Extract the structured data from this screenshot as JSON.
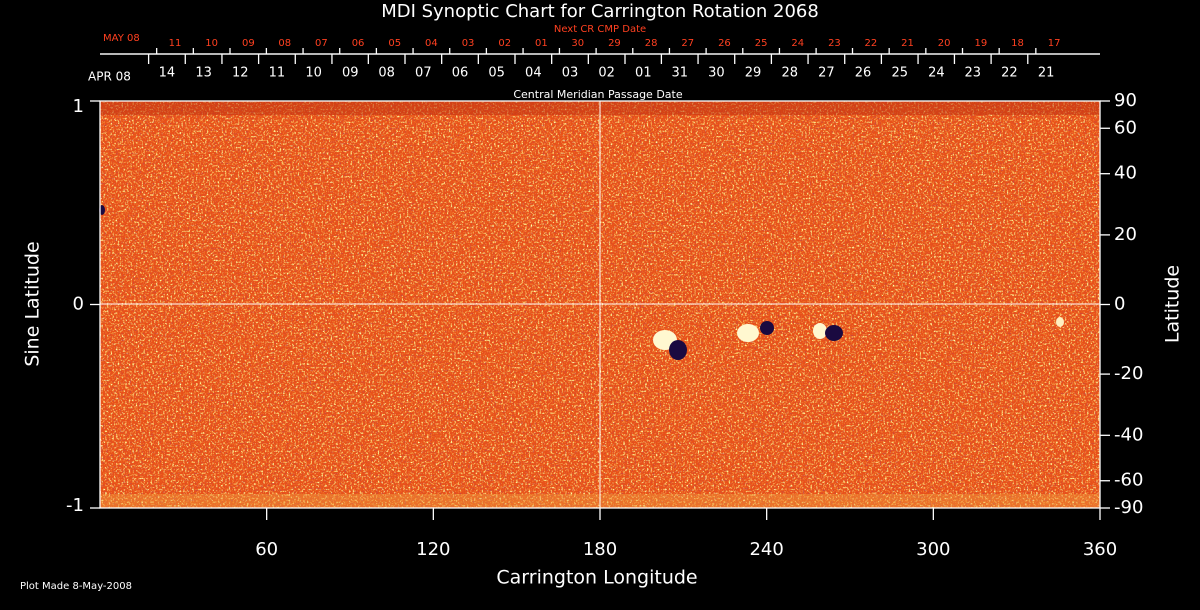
{
  "chart_data": {
    "type": "image",
    "title": "MDI Synoptic Chart for Carrington Rotation 2068",
    "xlabel": "Carrington Longitude",
    "ylabel": "Sine Latitude",
    "y2label": "Latitude",
    "xlim": [
      0,
      360
    ],
    "xticks": [
      60,
      120,
      180,
      240,
      300,
      360
    ],
    "ylim": [
      -1,
      1
    ],
    "yticks": [
      -1,
      0,
      1
    ],
    "y2scale": "sine",
    "y2ticks": [
      90,
      60,
      40,
      20,
      0,
      -20,
      -40,
      -60,
      -90
    ],
    "cmp_axis": {
      "title": "Central Meridian Passage Date",
      "month": "APR 08",
      "days": [
        "14",
        "13",
        "12",
        "11",
        "10",
        "09",
        "08",
        "07",
        "06",
        "05",
        "04",
        "03",
        "02",
        "01",
        "31",
        "30",
        "29",
        "28",
        "27",
        "26",
        "25",
        "24",
        "23",
        "22",
        "21"
      ],
      "x": [
        24.1,
        37.3,
        50.5,
        63.7,
        76.9,
        90.1,
        103.2,
        116.4,
        129.6,
        142.8,
        156.0,
        169.2,
        182.4,
        195.6,
        208.7,
        221.9,
        235.1,
        248.3,
        261.5,
        274.7,
        287.9,
        301.1,
        314.2,
        327.4,
        340.6
      ]
    },
    "next_cmp_axis": {
      "title": "Next CR CMP Date",
      "month": "MAY 08",
      "days": [
        "11",
        "10",
        "09",
        "08",
        "07",
        "06",
        "05",
        "04",
        "03",
        "02",
        "01",
        "30",
        "29",
        "28",
        "27",
        "26",
        "25",
        "24",
        "23",
        "22",
        "21",
        "20",
        "19",
        "18",
        "17"
      ],
      "x": [
        27.0,
        40.2,
        53.4,
        66.5,
        79.7,
        92.9,
        106.1,
        119.3,
        132.5,
        145.7,
        158.9,
        172.0,
        185.2,
        198.4,
        211.6,
        224.8,
        238.0,
        251.2,
        264.4,
        277.5,
        290.7,
        303.9,
        317.1,
        330.3,
        343.5
      ],
      "color": "#ff4020"
    },
    "footnote": "Plot Made  8-May-2008"
  }
}
